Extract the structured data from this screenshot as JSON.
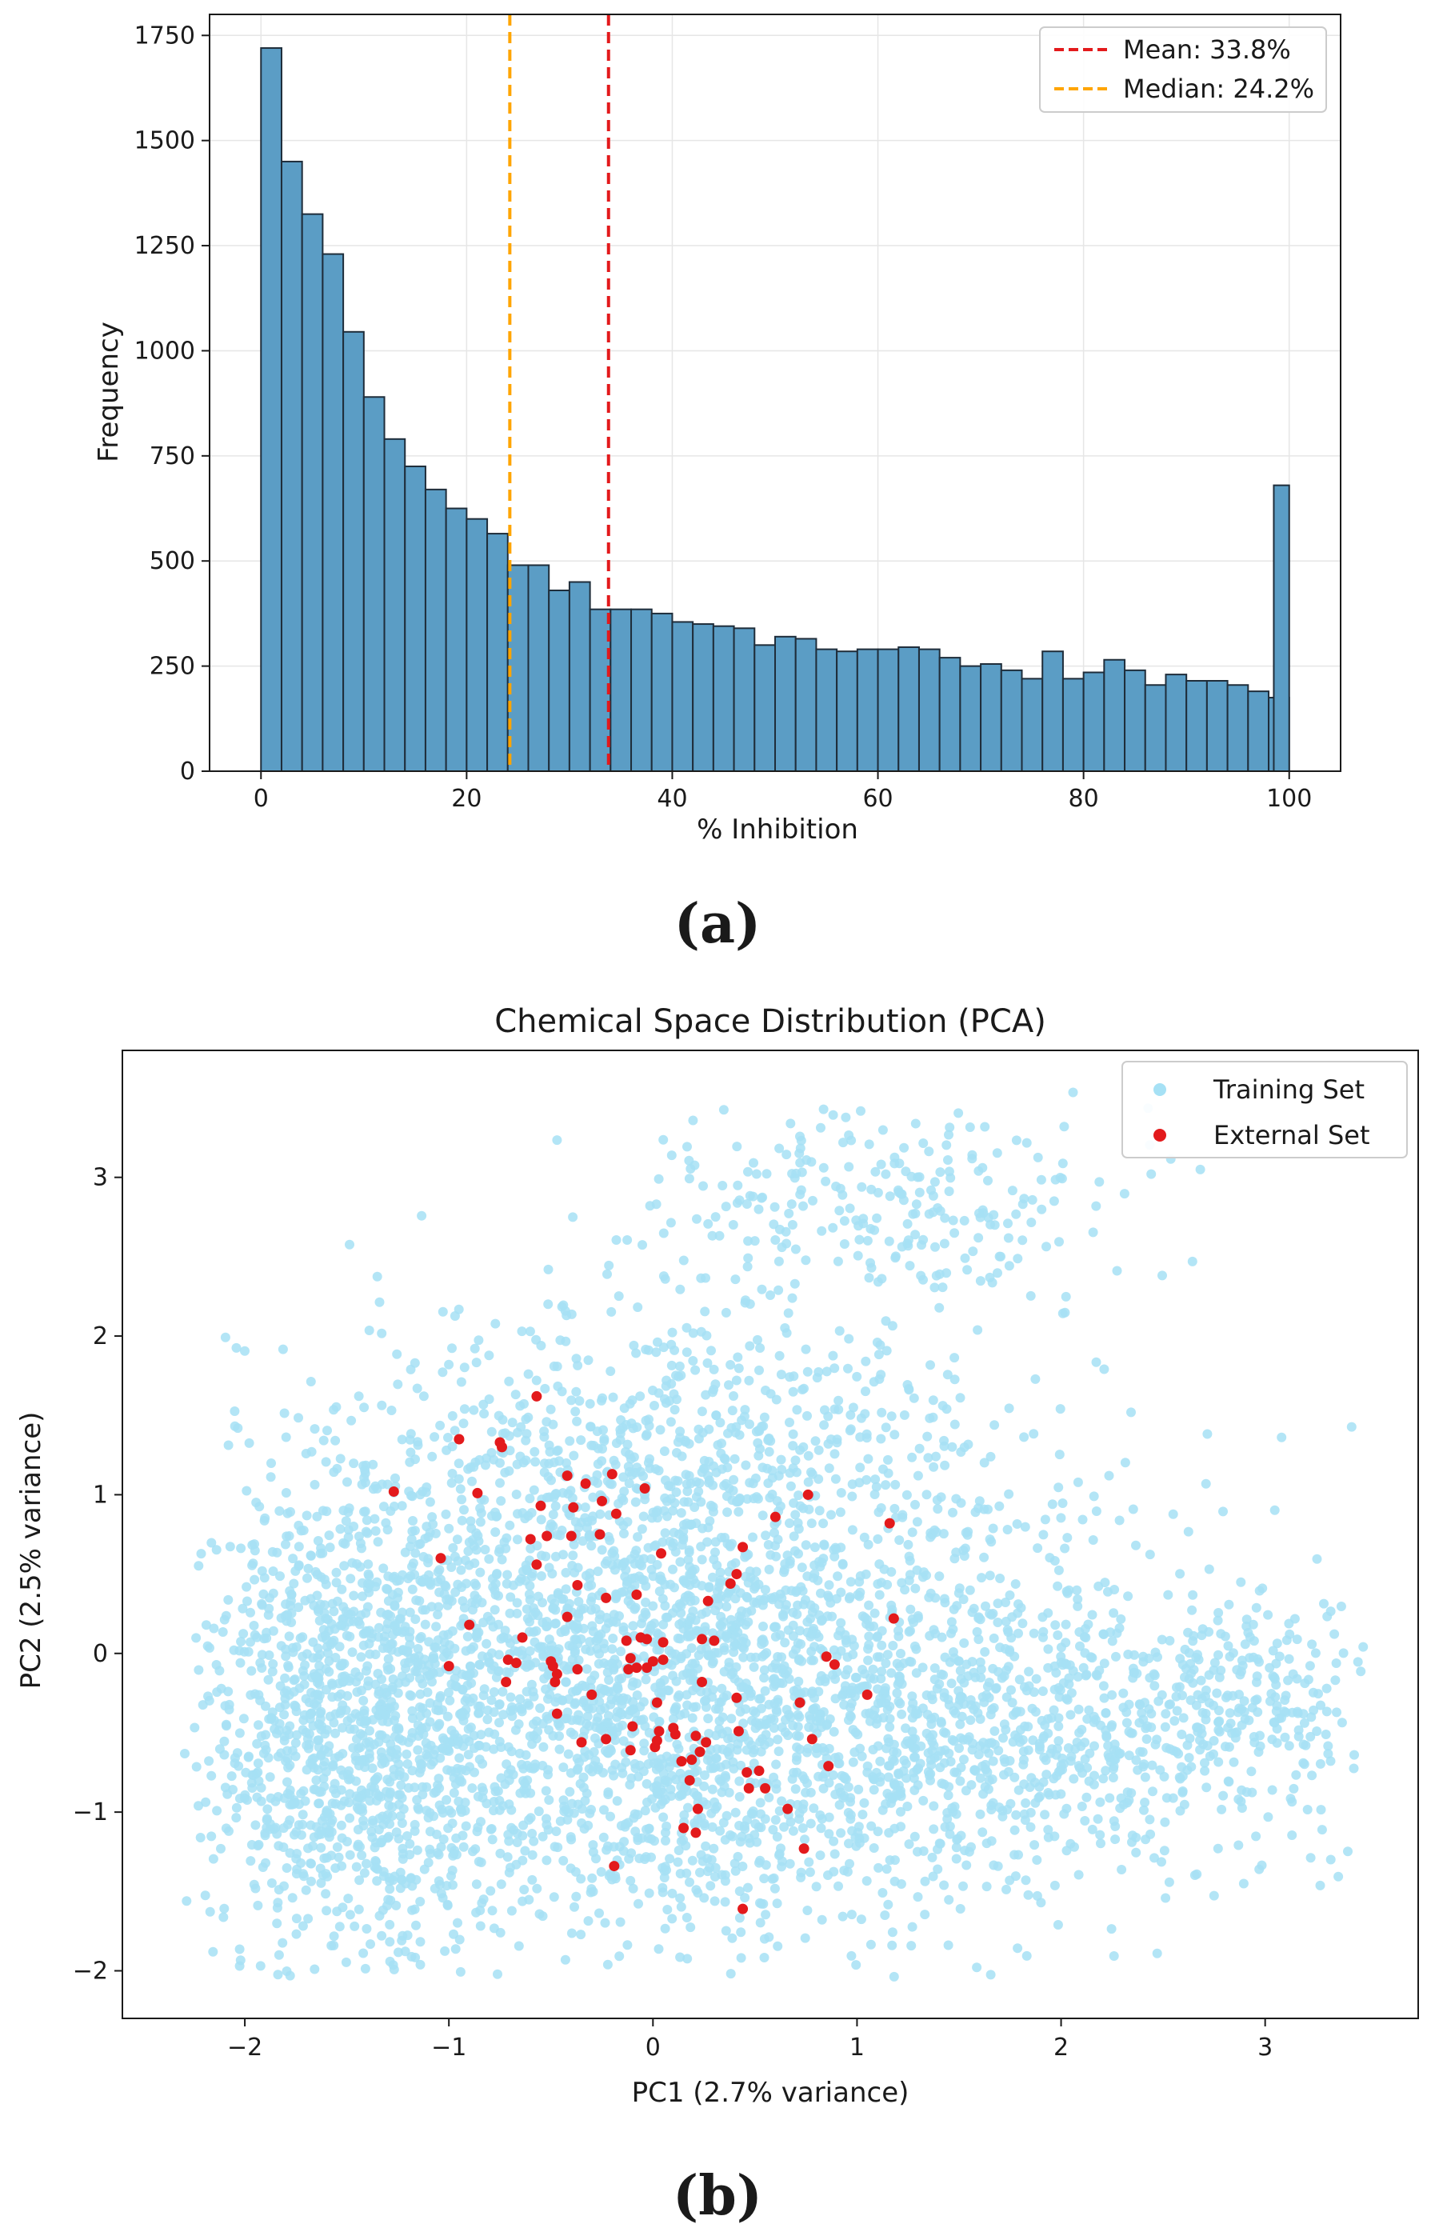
{
  "chart_data": [
    {
      "type": "bar",
      "panel": "(a)",
      "title": "",
      "xlabel": "% Inhibition",
      "ylabel": "Frequency",
      "xlim": [
        -5,
        105
      ],
      "ylim": [
        0,
        1800
      ],
      "grid": true,
      "bin_start": 0,
      "bin_width": 2,
      "values": [
        1720,
        1450,
        1325,
        1230,
        1045,
        890,
        790,
        725,
        670,
        625,
        600,
        565,
        490,
        490,
        430,
        450,
        385,
        385,
        385,
        375,
        355,
        350,
        345,
        340,
        300,
        320,
        315,
        290,
        285,
        290,
        290,
        295,
        290,
        270,
        250,
        255,
        240,
        220,
        285,
        220,
        235,
        265,
        240,
        205,
        230,
        215,
        215,
        205,
        190,
        175
      ],
      "last_bar": {
        "x": 98.5,
        "width": 1.5,
        "value": 680
      },
      "bar_color": "#5b9dc5",
      "bar_edge_color": "#1f2d3a",
      "x_ticks": [
        0,
        20,
        40,
        60,
        80,
        100
      ],
      "x_tick_labels": [
        "0",
        "20",
        "40",
        "60",
        "80",
        "100"
      ],
      "y_ticks": [
        0,
        250,
        500,
        750,
        1000,
        1250,
        1500,
        1750
      ],
      "y_tick_labels": [
        "0",
        "250",
        "500",
        "750",
        "1000",
        "1250",
        "1500",
        "1750"
      ],
      "reference_lines": [
        {
          "name": "mean",
          "label": "Mean: 33.8%",
          "x": 33.8,
          "color": "#e31a1c",
          "style": "dashed"
        },
        {
          "name": "median",
          "label": "Median: 24.2%",
          "x": 24.2,
          "color": "#ffa500",
          "style": "dashed"
        }
      ],
      "legend": "top-right"
    },
    {
      "type": "scatter",
      "panel": "(b)",
      "title": "Chemical Space Distribution (PCA)",
      "xlabel": "PC1 (2.7% variance)",
      "ylabel": "PC2 (2.5% variance)",
      "xlim": [
        -2.6,
        3.75
      ],
      "ylim": [
        -2.3,
        3.8
      ],
      "grid": false,
      "x_ticks": [
        -2,
        -1,
        0,
        1,
        2,
        3
      ],
      "x_tick_labels": [
        "−2",
        "−1",
        "0",
        "1",
        "2",
        "3"
      ],
      "y_ticks": [
        -2,
        -1,
        0,
        1,
        2,
        3
      ],
      "y_tick_labels": [
        "−2",
        "−1",
        "0",
        "1",
        "2",
        "3"
      ],
      "legend": "top-right",
      "series": [
        {
          "name": "Training Set",
          "color": "#a6e1f5",
          "description_points": "dense cloud",
          "region": {
            "x_min": -2.3,
            "x_max": 3.5,
            "y_min": -2.05,
            "y_max": 3.6
          },
          "points": []
        },
        {
          "name": "External Set",
          "color": "#e31a1c",
          "points": [
            [
              -1.27,
              1.02
            ],
            [
              -0.57,
              1.62
            ],
            [
              -0.95,
              1.35
            ],
            [
              -0.75,
              1.33
            ],
            [
              -0.74,
              1.3
            ],
            [
              -0.86,
              1.01
            ],
            [
              -0.42,
              1.12
            ],
            [
              -0.33,
              1.07
            ],
            [
              -0.2,
              1.13
            ],
            [
              -0.04,
              1.04
            ],
            [
              -0.55,
              0.93
            ],
            [
              -0.39,
              0.92
            ],
            [
              -0.25,
              0.96
            ],
            [
              -0.18,
              0.88
            ],
            [
              0.6,
              0.86
            ],
            [
              0.76,
              1.0
            ],
            [
              1.16,
              0.82
            ],
            [
              -0.6,
              0.72
            ],
            [
              -0.52,
              0.74
            ],
            [
              -0.4,
              0.74
            ],
            [
              -0.26,
              0.75
            ],
            [
              0.04,
              0.63
            ],
            [
              -1.04,
              0.6
            ],
            [
              -0.57,
              0.56
            ],
            [
              0.44,
              0.67
            ],
            [
              -0.37,
              0.43
            ],
            [
              0.41,
              0.5
            ],
            [
              0.38,
              0.44
            ],
            [
              -0.08,
              0.37
            ],
            [
              0.27,
              0.33
            ],
            [
              1.18,
              0.22
            ],
            [
              -0.9,
              0.18
            ],
            [
              -0.23,
              0.35
            ],
            [
              -0.42,
              0.23
            ],
            [
              -0.64,
              0.1
            ],
            [
              -0.13,
              0.08
            ],
            [
              -0.06,
              0.1
            ],
            [
              -0.03,
              0.09
            ],
            [
              0.05,
              0.07
            ],
            [
              0.24,
              0.09
            ],
            [
              0.3,
              0.08
            ],
            [
              -1.0,
              -0.08
            ],
            [
              -0.71,
              -0.04
            ],
            [
              -0.67,
              -0.06
            ],
            [
              -0.5,
              -0.05
            ],
            [
              -0.49,
              -0.08
            ],
            [
              -0.11,
              -0.03
            ],
            [
              0.0,
              -0.05
            ],
            [
              0.05,
              -0.04
            ],
            [
              0.85,
              -0.02
            ],
            [
              0.89,
              -0.07
            ],
            [
              -0.72,
              -0.18
            ],
            [
              -0.47,
              -0.13
            ],
            [
              -0.48,
              -0.18
            ],
            [
              -0.37,
              -0.1
            ],
            [
              -0.12,
              -0.1
            ],
            [
              -0.08,
              -0.09
            ],
            [
              -0.03,
              -0.09
            ],
            [
              0.24,
              -0.18
            ],
            [
              -0.3,
              -0.26
            ],
            [
              0.02,
              -0.31
            ],
            [
              0.41,
              -0.28
            ],
            [
              0.72,
              -0.31
            ],
            [
              1.05,
              -0.26
            ],
            [
              -0.47,
              -0.38
            ],
            [
              -0.1,
              -0.46
            ],
            [
              0.21,
              -0.52
            ],
            [
              0.42,
              -0.49
            ],
            [
              -0.35,
              -0.56
            ],
            [
              -0.23,
              -0.54
            ],
            [
              -0.11,
              -0.61
            ],
            [
              0.02,
              -0.55
            ],
            [
              0.03,
              -0.49
            ],
            [
              0.11,
              -0.51
            ],
            [
              0.1,
              -0.47
            ],
            [
              0.26,
              -0.56
            ],
            [
              0.01,
              -0.59
            ],
            [
              0.78,
              -0.54
            ],
            [
              0.14,
              -0.68
            ],
            [
              0.19,
              -0.67
            ],
            [
              0.23,
              -0.62
            ],
            [
              0.46,
              -0.75
            ],
            [
              0.52,
              -0.74
            ],
            [
              0.47,
              -0.85
            ],
            [
              0.55,
              -0.85
            ],
            [
              0.86,
              -0.71
            ],
            [
              0.18,
              -0.8
            ],
            [
              0.22,
              -0.98
            ],
            [
              0.66,
              -0.98
            ],
            [
              0.15,
              -1.1
            ],
            [
              0.21,
              -1.13
            ],
            [
              0.74,
              -1.23
            ],
            [
              -0.19,
              -1.34
            ],
            [
              0.44,
              -1.61
            ]
          ]
        }
      ]
    }
  ],
  "panel_labels": {
    "a": "(a)",
    "b": "(b)"
  }
}
